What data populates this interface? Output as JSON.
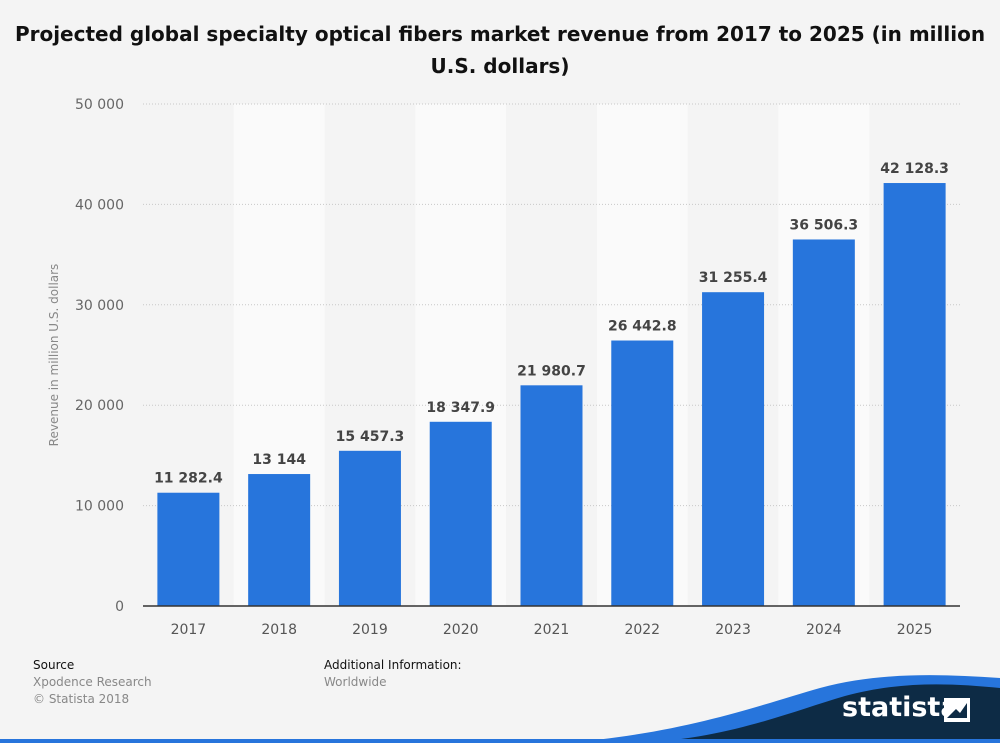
{
  "chart_data": {
    "type": "bar",
    "title": "Projected global specialty optical fibers market revenue from 2017 to 2025 (in million U.S. dollars)",
    "ylabel": "Revenue in million U.S. dollars",
    "xlabel": "",
    "categories": [
      "2017",
      "2018",
      "2019",
      "2020",
      "2021",
      "2022",
      "2023",
      "2024",
      "2025"
    ],
    "values": [
      11282.4,
      13144,
      15457.3,
      18347.9,
      21980.7,
      26442.8,
      31255.4,
      36506.3,
      42128.3
    ],
    "value_labels": [
      "11 282.4",
      "13 144",
      "15 457.3",
      "18 347.9",
      "21 980.7",
      "26 442.8",
      "31 255.4",
      "36 506.3",
      "42 128.3"
    ],
    "ylim": [
      0,
      50000
    ],
    "yticks": [
      0,
      10000,
      20000,
      30000,
      40000,
      50000
    ],
    "ytick_labels": [
      "0",
      "10 000",
      "20 000",
      "30 000",
      "40 000",
      "50 000"
    ],
    "grid": true,
    "bar_color": "#2775dc"
  },
  "footer": {
    "source_heading": "Source",
    "source_lines": [
      "Xpodence Research",
      "© Statista 2018"
    ],
    "info_heading": "Additional Information:",
    "info_lines": [
      "Worldwide"
    ]
  },
  "brand": {
    "name": "statista",
    "logo_icon": "statista-flag-icon",
    "wave_color": "#0d2b45",
    "accent_color": "#2775dc"
  }
}
